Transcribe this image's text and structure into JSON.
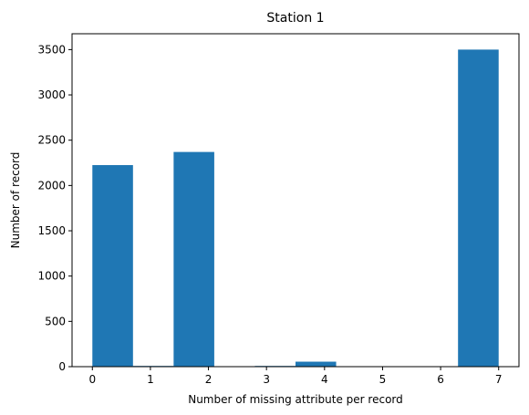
{
  "chart_data": {
    "type": "bar",
    "title": "Station 1",
    "xlabel": "Number of missing attribute per record",
    "ylabel": "Number of record",
    "xlim": [
      -0.35,
      7.35
    ],
    "ylim": [
      0,
      3675
    ],
    "xticks": [
      0,
      1,
      2,
      3,
      4,
      5,
      6,
      7
    ],
    "yticks": [
      0,
      500,
      1000,
      1500,
      2000,
      2500,
      3000,
      3500
    ],
    "bins": [
      {
        "x0": 0.0,
        "x1": 0.7,
        "value": 2225
      },
      {
        "x0": 0.7,
        "x1": 1.4,
        "value": 8
      },
      {
        "x0": 1.4,
        "x1": 2.1,
        "value": 2370
      },
      {
        "x0": 2.1,
        "x1": 2.8,
        "value": 0
      },
      {
        "x0": 2.8,
        "x1": 3.5,
        "value": 8
      },
      {
        "x0": 3.5,
        "x1": 4.2,
        "value": 55
      },
      {
        "x0": 4.2,
        "x1": 4.9,
        "value": 0
      },
      {
        "x0": 4.9,
        "x1": 5.6,
        "value": 0
      },
      {
        "x0": 5.6,
        "x1": 6.3,
        "value": 0
      },
      {
        "x0": 6.3,
        "x1": 7.0,
        "value": 3500
      }
    ],
    "bar_color": "#1f77b4",
    "grid": false,
    "legend": "none"
  }
}
